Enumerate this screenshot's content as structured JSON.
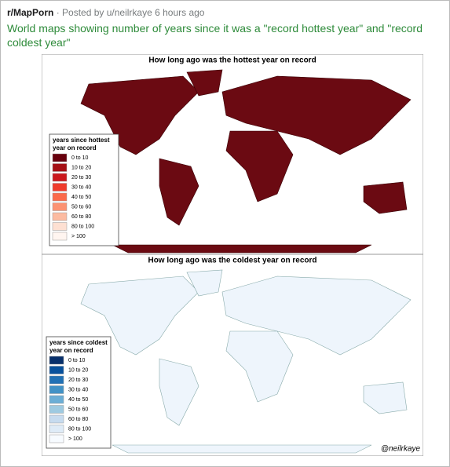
{
  "post": {
    "subreddit": "r/MapPorn",
    "meta": "· Posted by u/neilrkaye 6 hours ago",
    "title": "World maps showing number of years since it was a \"record hottest year\" and \"record coldest year\""
  },
  "maps": [
    {
      "title": "How long ago was the hottest year on record",
      "land_color": "#6b0a12",
      "legend_title": [
        "years since hottest",
        "year on record"
      ],
      "legend": [
        {
          "label": "0 to 10",
          "color": "#67000d"
        },
        {
          "label": "10 to 20",
          "color": "#a50f15"
        },
        {
          "label": "20 to 30",
          "color": "#cb181d"
        },
        {
          "label": "30 to 40",
          "color": "#ef3b2c"
        },
        {
          "label": "40 to 50",
          "color": "#fb6a4a"
        },
        {
          "label": "50 to 60",
          "color": "#fc9272"
        },
        {
          "label": "60 to 80",
          "color": "#fcbba1"
        },
        {
          "label": "80 to 100",
          "color": "#fee0d2"
        },
        {
          "label": "> 100",
          "color": "#fff5f0"
        }
      ]
    },
    {
      "title": "How long ago was the coldest year on record",
      "land_color": "#eef5fc",
      "legend_title": [
        "years since coldest",
        "year on record"
      ],
      "legend": [
        {
          "label": "0 to 10",
          "color": "#08306b"
        },
        {
          "label": "10 to 20",
          "color": "#08519c"
        },
        {
          "label": "20 to 30",
          "color": "#2171b5"
        },
        {
          "label": "30 to 40",
          "color": "#4292c6"
        },
        {
          "label": "40 to 50",
          "color": "#6baed6"
        },
        {
          "label": "50 to 60",
          "color": "#9ecae1"
        },
        {
          "label": "60 to 80",
          "color": "#c6dbef"
        },
        {
          "label": "80 to 100",
          "color": "#deebf7"
        },
        {
          "label": "> 100",
          "color": "#f7fbff"
        }
      ],
      "credit": "@neilrkaye"
    }
  ]
}
